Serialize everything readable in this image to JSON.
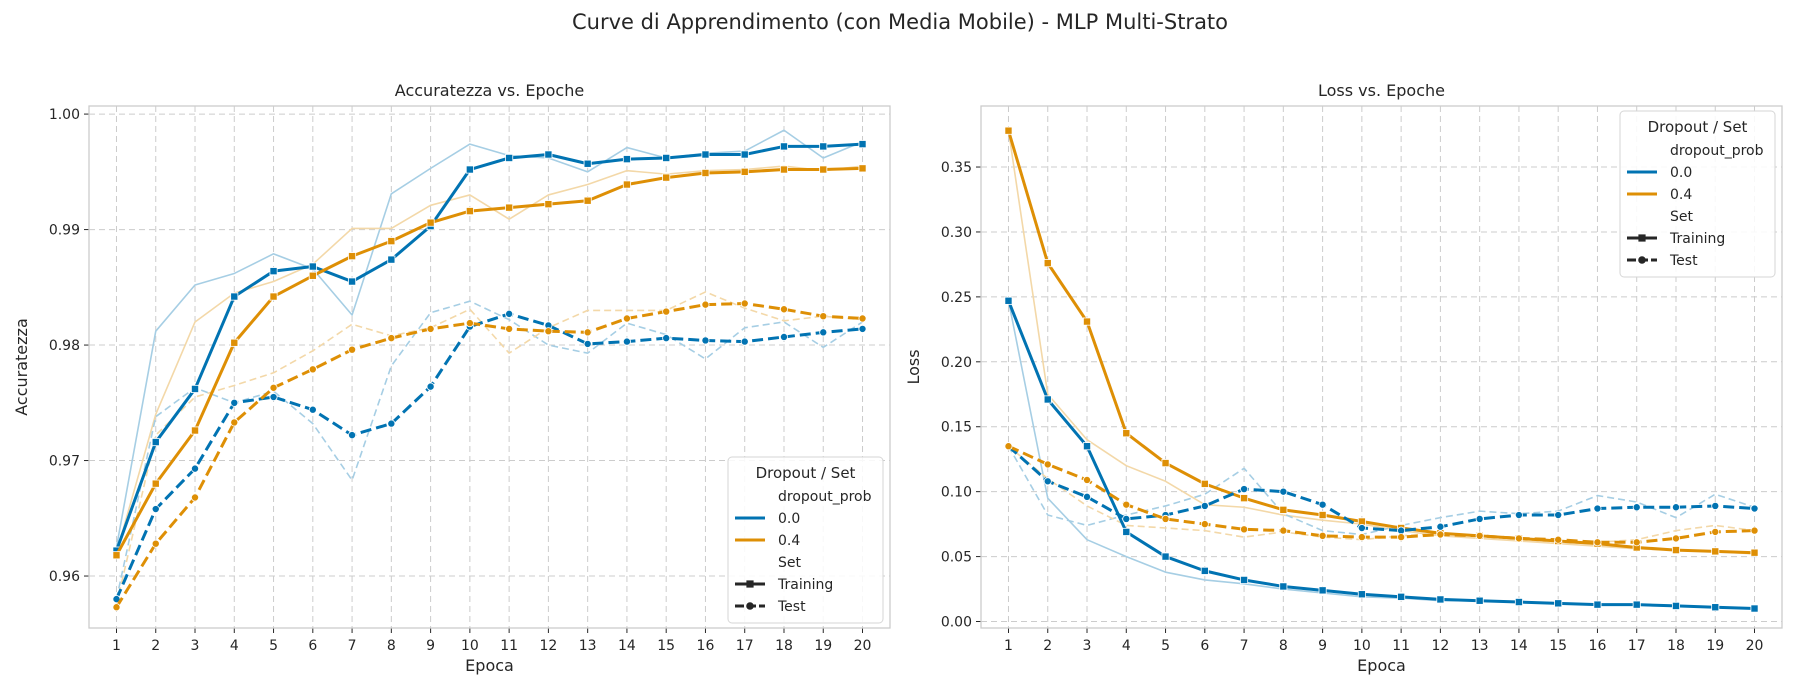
{
  "figure": {
    "title": "Curve di Apprendimento (con Media Mobile) - MLP Multi-Strato"
  },
  "chart_data": [
    {
      "type": "line",
      "title": "Accuratezza vs. Epoche",
      "xlabel": "Epoca",
      "ylabel": "Accuratezza",
      "x": [
        1,
        2,
        3,
        4,
        5,
        6,
        7,
        8,
        9,
        10,
        11,
        12,
        13,
        14,
        15,
        16,
        17,
        18,
        19,
        20
      ],
      "ylim": [
        0.9555,
        1.0007
      ],
      "yticks": [
        0.96,
        0.97,
        0.98,
        0.99,
        1.0
      ],
      "ytick_labels": [
        "0.96",
        "0.97",
        "0.98",
        "0.99",
        "1.00"
      ],
      "grid": true,
      "legend_placement": "lower-right",
      "legend": {
        "title": "Dropout / Set",
        "hue_title": "dropout_prob",
        "style_title": "Set",
        "hue_entries": [
          "0.0",
          "0.4"
        ],
        "style_entries": [
          "Training",
          "Test"
        ]
      },
      "series": [
        {
          "dropout": "0.0",
          "set": "Training",
          "kind": "raw",
          "color": "#0173b2",
          "values": [
            0.9625,
            0.9812,
            0.9852,
            0.9862,
            0.9879,
            0.9866,
            0.9826,
            0.9931,
            0.9953,
            0.9974,
            0.9964,
            0.9962,
            0.995,
            0.9971,
            0.9962,
            0.9966,
            0.9968,
            0.9986,
            0.9962,
            0.9976
          ]
        },
        {
          "dropout": "0.4",
          "set": "Training",
          "kind": "raw",
          "color": "#de8f05",
          "values": [
            0.962,
            0.974,
            0.982,
            0.9845,
            0.9855,
            0.987,
            0.9901,
            0.9901,
            0.9921,
            0.993,
            0.9909,
            0.993,
            0.9939,
            0.9951,
            0.9948,
            0.9951,
            0.9952,
            0.9955,
            0.9951,
            0.9955
          ]
        },
        {
          "dropout": "0.0",
          "set": "Test",
          "kind": "raw",
          "color": "#0173b2",
          "values": [
            0.958,
            0.9738,
            0.9763,
            0.975,
            0.976,
            0.9732,
            0.9683,
            0.9782,
            0.9828,
            0.9838,
            0.9822,
            0.98,
            0.9793,
            0.9819,
            0.9809,
            0.9788,
            0.9815,
            0.982,
            0.9798,
            0.982
          ]
        },
        {
          "dropout": "0.4",
          "set": "Test",
          "kind": "raw",
          "color": "#de8f05",
          "values": [
            0.9575,
            0.9722,
            0.9755,
            0.9765,
            0.9776,
            0.9795,
            0.9818,
            0.9808,
            0.9815,
            0.9831,
            0.9793,
            0.9815,
            0.983,
            0.983,
            0.983,
            0.9846,
            0.9832,
            0.9821,
            0.9825,
            0.9822
          ]
        },
        {
          "dropout": "0.0",
          "set": "Training",
          "kind": "smoothed",
          "color": "#0173b2",
          "values": [
            0.9622,
            0.9716,
            0.9762,
            0.9842,
            0.9864,
            0.9868,
            0.9855,
            0.9874,
            0.9903,
            0.9952,
            0.9962,
            0.9965,
            0.9957,
            0.9961,
            0.9962,
            0.9965,
            0.9965,
            0.9972,
            0.9972,
            0.9974
          ]
        },
        {
          "dropout": "0.4",
          "set": "Training",
          "kind": "smoothed",
          "color": "#de8f05",
          "values": [
            0.9618,
            0.968,
            0.9726,
            0.9802,
            0.9842,
            0.986,
            0.9877,
            0.989,
            0.9906,
            0.9916,
            0.9919,
            0.9922,
            0.9925,
            0.9939,
            0.9945,
            0.9949,
            0.995,
            0.9952,
            0.9952,
            0.9953
          ]
        },
        {
          "dropout": "0.0",
          "set": "Test",
          "kind": "smoothed",
          "color": "#0173b2",
          "values": [
            0.958,
            0.9658,
            0.9693,
            0.975,
            0.9755,
            0.9744,
            0.9722,
            0.9732,
            0.9764,
            0.9816,
            0.9827,
            0.9817,
            0.9801,
            0.9803,
            0.9806,
            0.9804,
            0.9803,
            0.9807,
            0.9811,
            0.9814
          ]
        },
        {
          "dropout": "0.4",
          "set": "Test",
          "kind": "smoothed",
          "color": "#de8f05",
          "values": [
            0.9573,
            0.9628,
            0.9668,
            0.9733,
            0.9763,
            0.9779,
            0.9796,
            0.9806,
            0.9814,
            0.9819,
            0.9814,
            0.9812,
            0.9811,
            0.9823,
            0.9829,
            0.9835,
            0.9836,
            0.9831,
            0.9825,
            0.9823
          ]
        }
      ]
    },
    {
      "type": "line",
      "title": "Loss vs. Epoche",
      "xlabel": "Epoca",
      "ylabel": "Loss",
      "x": [
        1,
        2,
        3,
        4,
        5,
        6,
        7,
        8,
        9,
        10,
        11,
        12,
        13,
        14,
        15,
        16,
        17,
        18,
        19,
        20
      ],
      "ylim": [
        -0.005,
        0.397
      ],
      "yticks": [
        0.0,
        0.05,
        0.1,
        0.15,
        0.2,
        0.25,
        0.3,
        0.35
      ],
      "ytick_labels": [
        "0.00",
        "0.05",
        "0.10",
        "0.15",
        "0.20",
        "0.25",
        "0.30",
        "0.35"
      ],
      "grid": true,
      "legend_placement": "upper-right",
      "legend": {
        "title": "Dropout / Set",
        "hue_title": "dropout_prob",
        "style_title": "Set",
        "hue_entries": [
          "0.0",
          "0.4"
        ],
        "style_entries": [
          "Training",
          "Test"
        ]
      },
      "series": [
        {
          "dropout": "0.0",
          "set": "Training",
          "kind": "raw",
          "color": "#0173b2",
          "values": [
            0.247,
            0.095,
            0.063,
            0.05,
            0.038,
            0.032,
            0.029,
            0.025,
            0.022,
            0.019,
            0.018,
            0.016,
            0.016,
            0.015,
            0.014,
            0.013,
            0.013,
            0.012,
            0.011,
            0.01
          ]
        },
        {
          "dropout": "0.4",
          "set": "Training",
          "kind": "raw",
          "color": "#de8f05",
          "values": [
            0.378,
            0.175,
            0.14,
            0.12,
            0.108,
            0.09,
            0.088,
            0.082,
            0.078,
            0.075,
            0.07,
            0.066,
            0.064,
            0.062,
            0.06,
            0.058,
            0.056,
            0.055,
            0.054,
            0.052
          ]
        },
        {
          "dropout": "0.0",
          "set": "Test",
          "kind": "raw",
          "color": "#0173b2",
          "values": [
            0.135,
            0.082,
            0.074,
            0.082,
            0.089,
            0.098,
            0.118,
            0.083,
            0.07,
            0.067,
            0.074,
            0.08,
            0.085,
            0.083,
            0.085,
            0.097,
            0.092,
            0.08,
            0.098,
            0.088
          ]
        },
        {
          "dropout": "0.4",
          "set": "Test",
          "kind": "raw",
          "color": "#de8f05",
          "values": [
            0.135,
            0.11,
            0.089,
            0.074,
            0.072,
            0.07,
            0.065,
            0.069,
            0.065,
            0.063,
            0.066,
            0.068,
            0.065,
            0.063,
            0.06,
            0.061,
            0.063,
            0.07,
            0.074,
            0.07
          ]
        },
        {
          "dropout": "0.0",
          "set": "Training",
          "kind": "smoothed",
          "color": "#0173b2",
          "values": [
            0.247,
            0.171,
            0.135,
            0.069,
            0.05,
            0.039,
            0.032,
            0.027,
            0.024,
            0.021,
            0.019,
            0.017,
            0.016,
            0.015,
            0.014,
            0.013,
            0.013,
            0.012,
            0.011,
            0.01
          ]
        },
        {
          "dropout": "0.4",
          "set": "Training",
          "kind": "smoothed",
          "color": "#de8f05",
          "values": [
            0.378,
            0.276,
            0.231,
            0.145,
            0.122,
            0.106,
            0.095,
            0.086,
            0.082,
            0.077,
            0.072,
            0.068,
            0.066,
            0.064,
            0.062,
            0.06,
            0.057,
            0.055,
            0.054,
            0.053
          ]
        },
        {
          "dropout": "0.0",
          "set": "Test",
          "kind": "smoothed",
          "color": "#0173b2",
          "values": [
            0.135,
            0.108,
            0.096,
            0.079,
            0.082,
            0.089,
            0.102,
            0.1,
            0.09,
            0.072,
            0.07,
            0.073,
            0.079,
            0.082,
            0.082,
            0.087,
            0.088,
            0.088,
            0.089,
            0.087
          ]
        },
        {
          "dropout": "0.4",
          "set": "Test",
          "kind": "smoothed",
          "color": "#de8f05",
          "values": [
            0.135,
            0.121,
            0.109,
            0.09,
            0.079,
            0.075,
            0.071,
            0.07,
            0.066,
            0.065,
            0.065,
            0.067,
            0.066,
            0.064,
            0.063,
            0.061,
            0.061,
            0.064,
            0.069,
            0.07
          ]
        }
      ]
    }
  ]
}
